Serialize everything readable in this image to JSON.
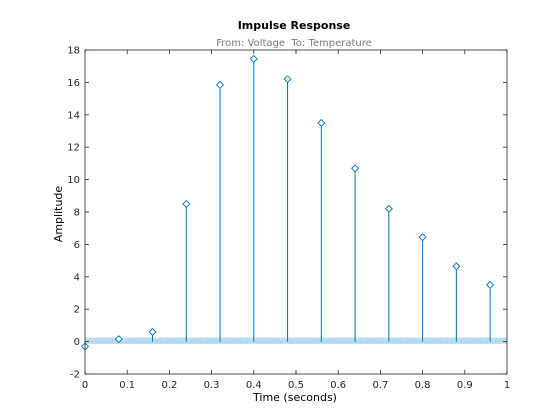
{
  "chart_data": {
    "type": "stem",
    "title": "Impulse Response",
    "subtitle": "From: Voltage  To: Temperature",
    "xlabel": "Time (seconds)",
    "ylabel": "Amplitude",
    "xlim": [
      0,
      1
    ],
    "ylim": [
      -2,
      18
    ],
    "xticks": [
      "0",
      "0.1",
      "0.2",
      "0.3",
      "0.4",
      "0.5",
      "0.6",
      "0.7",
      "0.8",
      "0.9",
      "1"
    ],
    "yticks": [
      "-2",
      "0",
      "2",
      "4",
      "6",
      "8",
      "10",
      "12",
      "14",
      "16",
      "18"
    ],
    "grid": false,
    "x": [
      0,
      0.08,
      0.16,
      0.24,
      0.32,
      0.4,
      0.48,
      0.56,
      0.64,
      0.72,
      0.8,
      0.88,
      0.96
    ],
    "values": [
      -0.3,
      0.15,
      0.6,
      8.5,
      15.85,
      17.45,
      16.2,
      13.5,
      10.7,
      8.2,
      6.45,
      4.65,
      3.5
    ],
    "confidence_band": [
      -0.15,
      0.25
    ],
    "colors": {
      "stem": "#0072BD",
      "band": "#bcdcef",
      "axes": "#262626"
    }
  }
}
